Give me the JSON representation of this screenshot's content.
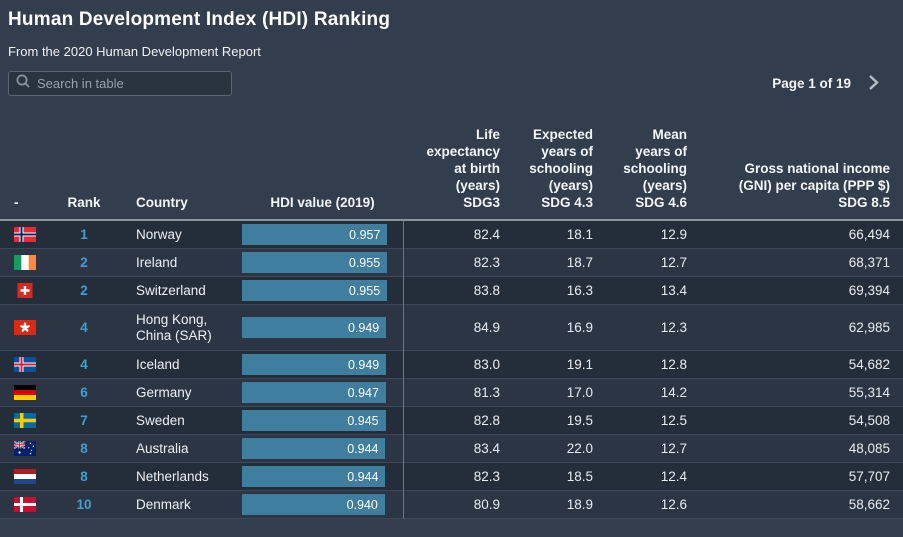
{
  "page": {
    "title": "Human Development Index (HDI) Ranking",
    "subtitle": "From the 2020 Human Development Report",
    "background_color": "#323d4d"
  },
  "toolbar": {
    "search": {
      "placeholder": "Search in table"
    },
    "pagination": {
      "label": "Page 1 of 19"
    }
  },
  "colors": {
    "hdi_bar": "#3f7e9e",
    "rank_accent": "#41a0cf",
    "header_border": "#8b94a1"
  },
  "table": {
    "columns": [
      "-",
      "Rank",
      "Country",
      "HDI value (2019)",
      "Life expectancy at birth (years) SDG3",
      "Expected years of schooling (years) SDG 4.3",
      "Mean years of schooling (years) SDG 4.6",
      "Gross national income (GNI) per capita (PPP $) SDG 8.5"
    ],
    "rows": [
      {
        "flag": "norway-flag-icon",
        "rank": "1",
        "country": "Norway",
        "hdi": "0.957",
        "life_expectancy": "82.4",
        "expected_schooling": "18.1",
        "mean_schooling": "12.9",
        "gni_per_capita": "66,494"
      },
      {
        "flag": "ireland-flag-icon",
        "rank": "2",
        "country": "Ireland",
        "hdi": "0.955",
        "life_expectancy": "82.3",
        "expected_schooling": "18.7",
        "mean_schooling": "12.7",
        "gni_per_capita": "68,371"
      },
      {
        "flag": "switzerland-flag-icon",
        "rank": "2",
        "country": "Switzerland",
        "hdi": "0.955",
        "life_expectancy": "83.8",
        "expected_schooling": "16.3",
        "mean_schooling": "13.4",
        "gni_per_capita": "69,394"
      },
      {
        "flag": "hong-kong-flag-icon",
        "rank": "4",
        "country": "Hong Kong, China (SAR)",
        "hdi": "0.949",
        "life_expectancy": "84.9",
        "expected_schooling": "16.9",
        "mean_schooling": "12.3",
        "gni_per_capita": "62,985"
      },
      {
        "flag": "iceland-flag-icon",
        "rank": "4",
        "country": "Iceland",
        "hdi": "0.949",
        "life_expectancy": "83.0",
        "expected_schooling": "19.1",
        "mean_schooling": "12.8",
        "gni_per_capita": "54,682"
      },
      {
        "flag": "germany-flag-icon",
        "rank": "6",
        "country": "Germany",
        "hdi": "0.947",
        "life_expectancy": "81.3",
        "expected_schooling": "17.0",
        "mean_schooling": "14.2",
        "gni_per_capita": "55,314"
      },
      {
        "flag": "sweden-flag-icon",
        "rank": "7",
        "country": "Sweden",
        "hdi": "0.945",
        "life_expectancy": "82.8",
        "expected_schooling": "19.5",
        "mean_schooling": "12.5",
        "gni_per_capita": "54,508"
      },
      {
        "flag": "australia-flag-icon",
        "rank": "8",
        "country": "Australia",
        "hdi": "0.944",
        "life_expectancy": "83.4",
        "expected_schooling": "22.0",
        "mean_schooling": "12.7",
        "gni_per_capita": "48,085"
      },
      {
        "flag": "netherlands-flag-icon",
        "rank": "8",
        "country": "Netherlands",
        "hdi": "0.944",
        "life_expectancy": "82.3",
        "expected_schooling": "18.5",
        "mean_schooling": "12.4",
        "gni_per_capita": "57,707"
      },
      {
        "flag": "denmark-flag-icon",
        "rank": "10",
        "country": "Denmark",
        "hdi": "0.940",
        "life_expectancy": "80.9",
        "expected_schooling": "18.9",
        "mean_schooling": "12.6",
        "gni_per_capita": "58,662"
      }
    ]
  }
}
